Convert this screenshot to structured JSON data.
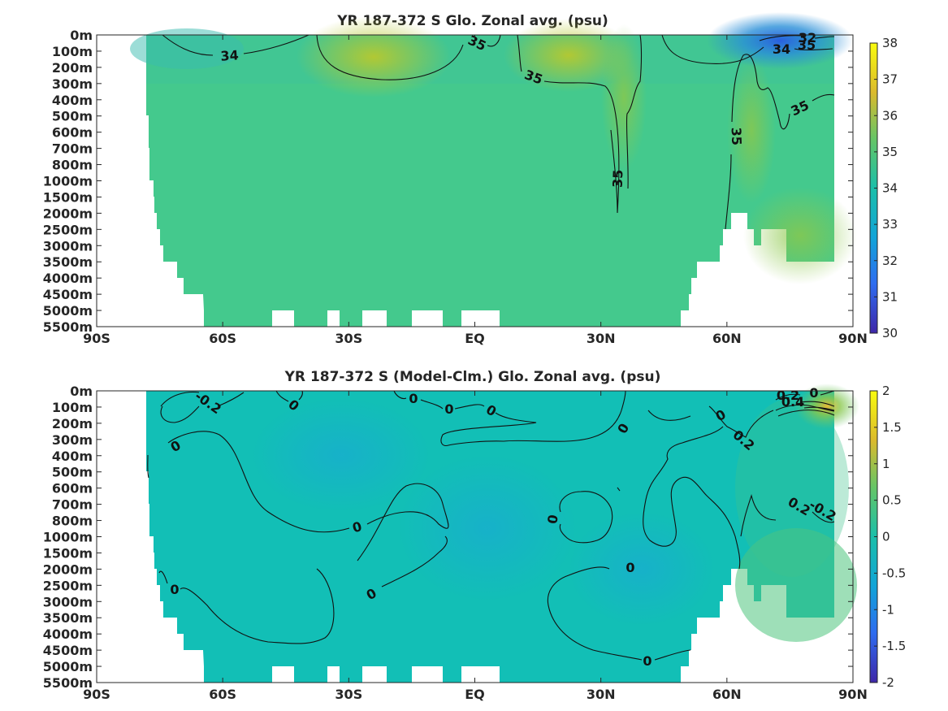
{
  "chart_data": [
    {
      "type": "heatmap",
      "title": "YR 187-372 S Glo. Zonal avg. (psu)",
      "xlabel": "",
      "ylabel": "",
      "x_ticks": [
        "90S",
        "60S",
        "30S",
        "EQ",
        "30N",
        "60N",
        "90N"
      ],
      "x_values": [
        -90,
        -60,
        -30,
        0,
        30,
        60,
        90
      ],
      "y_ticks": [
        "0m",
        "100m",
        "200m",
        "300m",
        "400m",
        "500m",
        "600m",
        "700m",
        "800m",
        "1000m",
        "1500m",
        "2000m",
        "2500m",
        "3000m",
        "3500m",
        "4000m",
        "4500m",
        "5000m",
        "5500m"
      ],
      "colorbar": {
        "range": [
          30,
          38
        ],
        "ticks": [
          "30",
          "31",
          "32",
          "33",
          "34",
          "35",
          "36",
          "37",
          "38"
        ]
      },
      "contour_labels": [
        {
          "text": "34",
          "lat": -58,
          "depth_level": 1.2
        },
        {
          "text": "35",
          "lat": -1,
          "depth_level": 0.5
        },
        {
          "text": "35",
          "lat": 14,
          "depth_level": 2.4
        },
        {
          "text": "35",
          "lat": 36,
          "depth_level": 8.9
        },
        {
          "text": "35",
          "lat": 61,
          "depth_level": 6.2
        },
        {
          "text": "35",
          "lat": 78,
          "depth_level": 4.3
        },
        {
          "text": "34",
          "lat": 74,
          "depth_level": 0.9
        },
        {
          "text": "35",
          "lat": 80,
          "depth_level": 0.6
        },
        {
          "text": "32",
          "lat": 80,
          "depth_level": 0.1
        }
      ],
      "colors": {
        "fill_main": "#44c98d",
        "fill_high": "#b7c82f",
        "fill_low": "#2a8fd8"
      }
    },
    {
      "type": "heatmap",
      "title": "YR 187-372 S (Model-Clm.) Glo. Zonal avg. (psu)",
      "xlabel": "",
      "ylabel": "",
      "x_ticks": [
        "90S",
        "60S",
        "30S",
        "EQ",
        "30N",
        "60N",
        "90N"
      ],
      "x_values": [
        -90,
        -60,
        -30,
        0,
        30,
        60,
        90
      ],
      "y_ticks": [
        "0m",
        "100m",
        "200m",
        "300m",
        "400m",
        "500m",
        "600m",
        "700m",
        "800m",
        "1000m",
        "1500m",
        "2000m",
        "2500m",
        "3000m",
        "3500m",
        "4000m",
        "4500m",
        "5000m",
        "5500m"
      ],
      "colorbar": {
        "range": [
          -2,
          2
        ],
        "ticks": [
          "-2",
          "-1.5",
          "-1",
          "-0.5",
          "0",
          "0.5",
          "1",
          "1.5",
          "2"
        ]
      },
      "contour_labels": [
        {
          "text": "-0.2",
          "lat": -63,
          "depth_level": 0.9
        },
        {
          "text": "0",
          "lat": -47,
          "depth_level": 0.9
        },
        {
          "text": "0",
          "lat": -69,
          "depth_level": 3.4
        },
        {
          "text": "0",
          "lat": -7,
          "depth_level": 0.4
        },
        {
          "text": "0",
          "lat": -6,
          "depth_level": 1.1
        },
        {
          "text": "0",
          "lat": 4,
          "depth_level": 1.1
        },
        {
          "text": "0",
          "lat": 36,
          "depth_level": 2.2
        },
        {
          "text": "0",
          "lat": 57,
          "depth_level": 1.4
        },
        {
          "text": "0.2",
          "lat": 61,
          "depth_level": 3.1
        },
        {
          "text": "0.2",
          "lat": 73,
          "depth_level": 0.4
        },
        {
          "text": "0",
          "lat": 80,
          "depth_level": 0.1
        },
        {
          "text": "0.4",
          "lat": 75,
          "depth_level": 0.6
        },
        {
          "text": "0.2",
          "lat": 78,
          "depth_level": 7.3
        },
        {
          "text": "-0.2",
          "lat": 83,
          "depth_level": 7.6
        },
        {
          "text": "0",
          "lat": -20,
          "depth_level": 8.4
        },
        {
          "text": "0",
          "lat": -28,
          "depth_level": 12.5
        },
        {
          "text": "0",
          "lat": -72,
          "depth_level": 12.2
        },
        {
          "text": "0",
          "lat": 20,
          "depth_level": 7.6
        },
        {
          "text": "0",
          "lat": 37,
          "depth_level": 11.0
        },
        {
          "text": "0",
          "lat": 41,
          "depth_level": 16.6
        }
      ],
      "colors": {
        "fill_main": "#12bfb6",
        "fill_high": "#6cc66a",
        "fill_low": "#1fa4d0"
      }
    }
  ]
}
